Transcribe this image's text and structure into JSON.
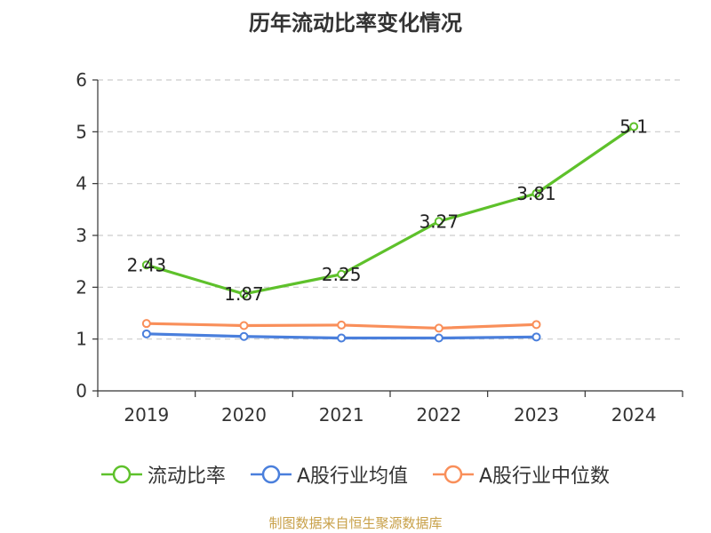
{
  "colors": {
    "axis": "#333333",
    "grid": "#cccccc",
    "source": "#c8a048"
  },
  "footer": {
    "source": "制图数据来自恒生聚源数据库"
  },
  "chart_data": {
    "type": "line",
    "title": "历年流动比率变化情况",
    "xlabel": "",
    "ylabel": "",
    "categories": [
      "2019",
      "2020",
      "2021",
      "2022",
      "2023",
      "2024"
    ],
    "ylim": [
      0,
      6
    ],
    "yticks": [
      0,
      1,
      2,
      3,
      4,
      5,
      6
    ],
    "grid": true,
    "legend_position": "bottom",
    "series": [
      {
        "name": "流动比率",
        "color": "#5ec12b",
        "values": [
          2.43,
          1.87,
          2.25,
          3.27,
          3.81,
          5.1
        ],
        "labels": [
          "2.43",
          "1.87",
          "2.25",
          "3.27",
          "3.81",
          "5.1"
        ]
      },
      {
        "name": "A股行业均值",
        "color": "#4a7fdc",
        "values": [
          1.1,
          1.05,
          1.02,
          1.02,
          1.04,
          null
        ],
        "labels": []
      },
      {
        "name": "A股行业中位数",
        "color": "#f98f5a",
        "values": [
          1.3,
          1.26,
          1.27,
          1.21,
          1.28,
          null
        ],
        "labels": []
      }
    ]
  }
}
